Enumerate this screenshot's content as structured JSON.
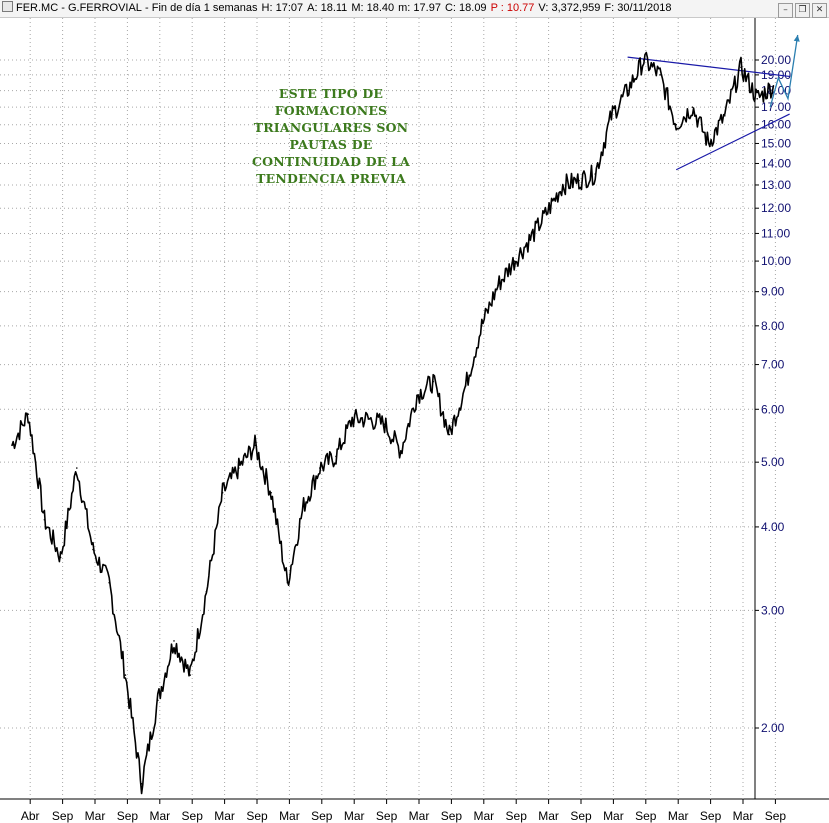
{
  "window": {
    "symbol": "FER.MC",
    "separator": "-",
    "name": "G.FERROVIAL",
    "period": "Fin de día 1 semanas",
    "stats": [
      {
        "label": "H:",
        "value": "17:07"
      },
      {
        "label": "A:",
        "value": "18.11"
      },
      {
        "label": "M:",
        "value": "18.40"
      },
      {
        "label": "m:",
        "value": "17.97"
      },
      {
        "label": "C:",
        "value": "18.09"
      },
      {
        "label": "P :",
        "value": "10.77",
        "highlight": true
      },
      {
        "label": "V:",
        "value": "3,372,959"
      },
      {
        "label": "F:",
        "value": "30/11/2018"
      }
    ],
    "controls": {
      "minimize": "–",
      "restore": "❐",
      "close": "✕"
    }
  },
  "chart_data": {
    "type": "line",
    "scale": "log",
    "ylim": [
      1.6,
      22.5
    ],
    "y_ticks": [
      {
        "value": 20,
        "label": "20.00"
      },
      {
        "value": 19,
        "label": "19.00"
      },
      {
        "value": 18,
        "label": "18.00"
      },
      {
        "value": 17,
        "label": "17.00"
      },
      {
        "value": 16,
        "label": "16.00"
      },
      {
        "value": 15,
        "label": "15.00"
      },
      {
        "value": 14,
        "label": "14.00"
      },
      {
        "value": 13,
        "label": "13.00"
      },
      {
        "value": 12,
        "label": "12.00"
      },
      {
        "value": 11,
        "label": "11.00"
      },
      {
        "value": 10,
        "label": "10.00"
      },
      {
        "value": 9,
        "label": "9.00"
      },
      {
        "value": 8,
        "label": "8.00"
      },
      {
        "value": 7,
        "label": "7.00"
      },
      {
        "value": 6,
        "label": "6.00"
      },
      {
        "value": 5,
        "label": "5.00"
      },
      {
        "value": 4,
        "label": "4.00"
      },
      {
        "value": 3,
        "label": "3.00"
      },
      {
        "value": 2,
        "label": "2.00"
      }
    ],
    "x_ticks": [
      "Abr",
      "Sep",
      "Mar",
      "Sep",
      "Mar",
      "Sep",
      "Mar",
      "Sep",
      "Mar",
      "Sep",
      "Mar",
      "Sep",
      "Mar",
      "Sep",
      "Mar",
      "Sep",
      "Mar",
      "Sep",
      "Mar",
      "Sep",
      "Mar",
      "Sep",
      "Mar",
      "Sep"
    ],
    "grid": true,
    "price_series": {
      "name": "",
      "color": "#000000",
      "x": [
        0,
        0.5,
        1,
        1.5,
        2,
        2.5,
        3,
        3.5,
        4,
        4.5,
        5,
        5.5,
        6,
        6.5,
        7,
        7.5,
        8,
        8.5,
        9,
        9.5,
        10,
        10.5,
        11,
        11.5,
        12,
        12.5,
        13,
        13.5,
        14,
        14.5,
        15,
        15.5,
        16,
        16.5,
        17,
        17.5,
        18,
        18.5,
        19,
        19.5,
        20,
        20.5,
        21,
        21.5,
        22,
        22.5,
        23,
        23.5
      ],
      "values": [
        5.3,
        5.9,
        4.1,
        3.6,
        4.9,
        3.7,
        3.3,
        2.4,
        1.65,
        2.2,
        2.7,
        2.4,
        3.2,
        4.5,
        4.9,
        5.3,
        4.5,
        3.3,
        4.3,
        4.9,
        5.1,
        5.8,
        5.8,
        5.7,
        5.2,
        6.3,
        6.6,
        5.5,
        6.5,
        8.0,
        9.2,
        10.0,
        10.8,
        11.8,
        13.0,
        13.2,
        13.5,
        16.5,
        18.0,
        20.0,
        19.0,
        16.0,
        17.0,
        15.0,
        16.5,
        19.5,
        17.5,
        18.3
      ]
    },
    "trendlines": [
      {
        "name": "",
        "color": "#1a1aa8",
        "points": [
          {
            "x": 19.0,
            "y": 20.2
          },
          {
            "x": 24.0,
            "y": 18.9
          }
        ]
      },
      {
        "name": "",
        "color": "#1a1aa8",
        "points": [
          {
            "x": 20.5,
            "y": 13.7
          },
          {
            "x": 24.0,
            "y": 16.6
          }
        ]
      }
    ],
    "projection": {
      "color": "#2b7fb0",
      "points": [
        {
          "x": 23.4,
          "y": 17.0
        },
        {
          "x": 23.65,
          "y": 18.8
        },
        {
          "x": 23.95,
          "y": 17.5
        },
        {
          "x": 24.25,
          "y": 21.8
        }
      ]
    },
    "annotation": {
      "lines": [
        "ESTE TIPO DE",
        "FORMACIONES",
        "TRIANGULARES SON",
        "PAUTAS DE",
        "CONTINUIDAD DE LA",
        "TENDENCIA PREVIA"
      ],
      "color": "#3c7a1d"
    }
  }
}
